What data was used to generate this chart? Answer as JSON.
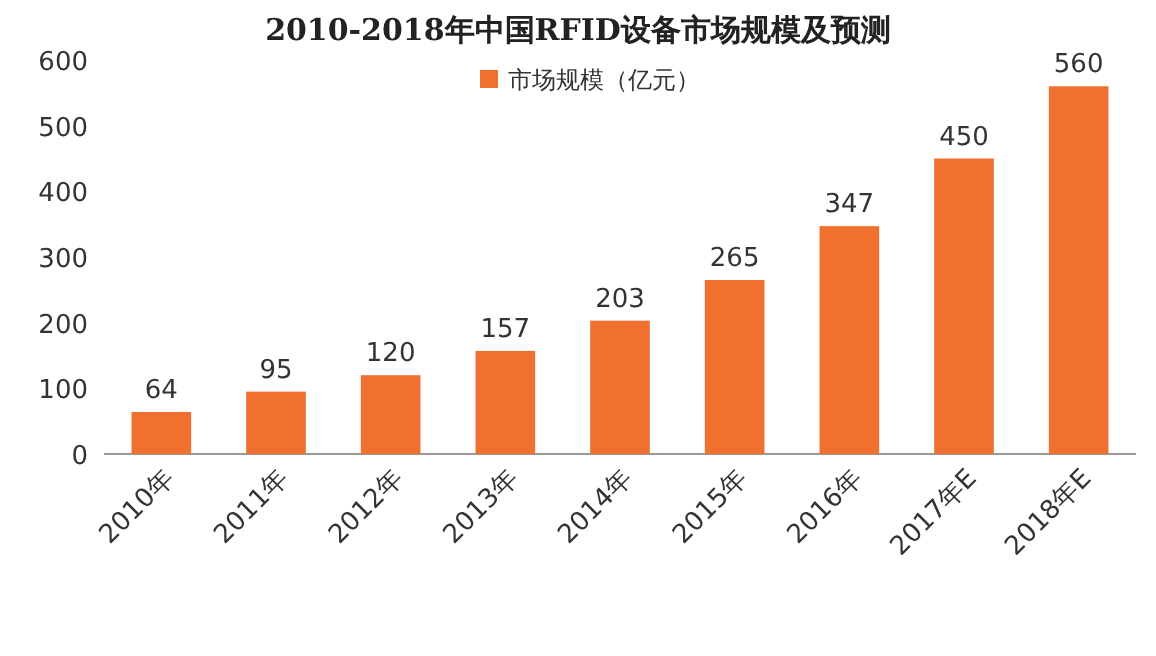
{
  "chart_data": {
    "type": "bar",
    "title": "2010-2018年中国RFID设备市场规模及预测",
    "categories": [
      "2010年",
      "2011年",
      "2012年",
      "2013年",
      "2014年",
      "2015年",
      "2016年",
      "2017年E",
      "2018年E"
    ],
    "series": [
      {
        "name": "市场规模（亿元）",
        "color": "#f07030",
        "values": [
          64,
          95,
          120,
          157,
          203,
          265,
          347,
          450,
          560
        ]
      }
    ],
    "ylim": [
      0,
      600
    ],
    "yticks": [
      0,
      100,
      200,
      300,
      400,
      500,
      600
    ],
    "data_labels": true,
    "legend": "top",
    "grid": false
  }
}
